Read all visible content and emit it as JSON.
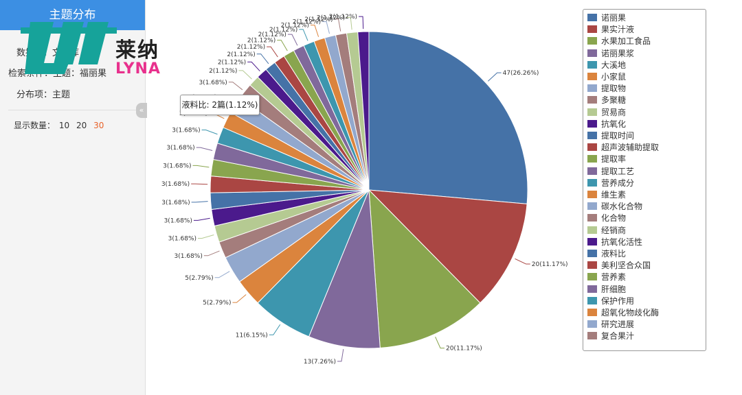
{
  "sidebar": {
    "title": "主题分布",
    "db_label": "数据库：文献库",
    "search_label": "检索条件：主题：福丽果",
    "dist_label": "分布项：主题",
    "count_label": "显示数量：",
    "count_options": [
      "10",
      "20",
      "30"
    ],
    "collapse_icon": "«"
  },
  "logo": {
    "cn": "莱纳",
    "en": "LYNA"
  },
  "tooltip": {
    "text": "液料比: 2篇(1.12%)"
  },
  "chart_data": {
    "type": "pie",
    "slices": [
      {
        "name": "诺丽果",
        "value": 47,
        "label": "47(26.26%)",
        "color": "#4572a7"
      },
      {
        "name": "果实汁液",
        "value": 20,
        "label": "20(11.17%)",
        "color": "#aa4643"
      },
      {
        "name": "水果加工食品",
        "value": 20,
        "label": "20(11.17%)",
        "color": "#89a54e"
      },
      {
        "name": "诺丽果浆",
        "value": 13,
        "label": "13(7.26%)",
        "color": "#80699b"
      },
      {
        "name": "大溪地",
        "value": 11,
        "label": "11(6.15%)",
        "color": "#3d96ae"
      },
      {
        "name": "小家鼠",
        "value": 5,
        "label": "5(2.79%)",
        "color": "#db843d"
      },
      {
        "name": "提取物",
        "value": 5,
        "label": "5(2.79%)",
        "color": "#92a8cd"
      },
      {
        "name": "多聚糖",
        "value": 3,
        "label": "3(1.68%)",
        "color": "#a47d7c"
      },
      {
        "name": "贸易商",
        "value": 3,
        "label": "3(1.68%)",
        "color": "#b5ca92"
      },
      {
        "name": "抗氧化",
        "value": 3,
        "label": "3(1.68%)",
        "color": "#4b1a8c"
      },
      {
        "name": "提取时间",
        "value": 3,
        "label": "3(1.68%)",
        "color": "#4572a7"
      },
      {
        "name": "超声波辅助提取",
        "value": 3,
        "label": "3(1.68%)",
        "color": "#aa4643"
      },
      {
        "name": "提取率",
        "value": 3,
        "label": "3(1.68%)",
        "color": "#89a54e"
      },
      {
        "name": "提取工艺",
        "value": 3,
        "label": "3(1.68%)",
        "color": "#80699b"
      },
      {
        "name": "营养成分",
        "value": 3,
        "label": "3(1.68%)",
        "color": "#3d96ae"
      },
      {
        "name": "维生素",
        "value": 3,
        "label": "3(1.68%)",
        "color": "#db843d"
      },
      {
        "name": "碳水化合物",
        "value": 3,
        "label": "3(1.68%)",
        "color": "#92a8cd"
      },
      {
        "name": "化合物",
        "value": 3,
        "label": "3(1.68%)",
        "color": "#a47d7c"
      },
      {
        "name": "经销商",
        "value": 2,
        "label": "2(1.12%)",
        "color": "#b5ca92"
      },
      {
        "name": "抗氧化活性",
        "value": 2,
        "label": "2(1.12%)",
        "color": "#4b1a8c"
      },
      {
        "name": "液料比",
        "value": 2,
        "label": "2(1.12%)",
        "color": "#4572a7"
      },
      {
        "name": "美利坚合众国",
        "value": 2,
        "label": "2(1.12%)",
        "color": "#aa4643"
      },
      {
        "name": "营养素",
        "value": 2,
        "label": "2(1.12%)",
        "color": "#89a54e"
      },
      {
        "name": "肝细胞",
        "value": 2,
        "label": "2(1.12%)",
        "color": "#80699b"
      },
      {
        "name": "保护作用",
        "value": 2,
        "label": "2(1.12%)",
        "color": "#3d96ae"
      },
      {
        "name": "超氧化物歧化酶",
        "value": 2,
        "label": "2(1.12%)",
        "color": "#db843d"
      },
      {
        "name": "研究进展",
        "value": 2,
        "label": "2(1.12%)",
        "color": "#92a8cd"
      },
      {
        "name": "复合果汁",
        "value": 2,
        "label": "2(1.12%)",
        "color": "#a47d7c"
      },
      {
        "name": "",
        "value": 2,
        "label": "2(1.12%)",
        "color": "#b5ca92"
      },
      {
        "name": "",
        "value": 2,
        "label": "2(1.12%)",
        "color": "#4b1a8c"
      }
    ]
  }
}
